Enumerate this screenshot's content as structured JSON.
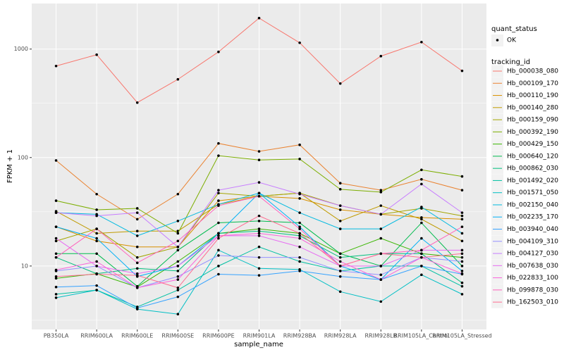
{
  "chart_data": {
    "type": "line",
    "x_label": "sample_name",
    "y_label": "FPKM + 1",
    "log_y": true,
    "grid": true,
    "ylim": [
      2.6,
      2630
    ],
    "yticks": [
      10,
      100,
      1000
    ],
    "point_legend": {
      "title": "quant_status",
      "labels": [
        "OK"
      ]
    },
    "legend_title": "tracking_id",
    "legend_position": "right",
    "categories": [
      "PB350LA",
      "RRIM600LA",
      "RRIM600LE",
      "RRIM600SE",
      "RRIM600PE",
      "RRIM901LA",
      "RRIM928BA",
      "RRIM928LA",
      "RRIM928LB",
      "RRIM105LA_Control",
      "RRIM105LA_Stressed"
    ],
    "series": [
      {
        "name": "Hb_000038_080",
        "color": "#F8766D",
        "values": [
          698,
          887,
          321,
          526,
          942,
          1930,
          1143,
          481,
          861,
          1160,
          630
        ]
      },
      {
        "name": "Hb_000109_170",
        "color": "#EA8331",
        "values": [
          94,
          46,
          27,
          46,
          135,
          114,
          131,
          58,
          50,
          63,
          50
        ]
      },
      {
        "name": "Hb_000110_190",
        "color": "#D89000",
        "values": [
          23,
          17,
          15,
          15,
          40,
          44,
          42,
          33,
          30,
          28,
          27
        ]
      },
      {
        "name": "Hb_000140_280",
        "color": "#C09B00",
        "values": [
          32,
          20,
          21,
          21,
          37,
          44,
          47,
          26,
          36,
          27,
          17
        ]
      },
      {
        "name": "Hb_000159_090",
        "color": "#A3A500",
        "values": [
          17,
          22,
          12,
          15,
          47,
          44,
          47,
          36,
          30,
          34,
          29
        ]
      },
      {
        "name": "Hb_000392_190",
        "color": "#7CAE00",
        "values": [
          40,
          33,
          34,
          20,
          104,
          95,
          97,
          51,
          48,
          77,
          67
        ]
      },
      {
        "name": "Hb_000429_150",
        "color": "#39B600",
        "values": [
          7.7,
          8.5,
          6.4,
          11,
          20,
          22,
          20,
          13,
          18,
          13,
          12
        ]
      },
      {
        "name": "Hb_000640_120",
        "color": "#00BB4E",
        "values": [
          13,
          13,
          6.5,
          14,
          25,
          26,
          25,
          13,
          10,
          25,
          10
        ]
      },
      {
        "name": "Hb_000862_030",
        "color": "#00BF7D",
        "values": [
          12,
          8.5,
          9.5,
          9,
          20,
          21,
          19,
          12,
          13,
          13,
          7
        ]
      },
      {
        "name": "Hb_001492_020",
        "color": "#00C1A3",
        "values": [
          5.5,
          6,
          4.2,
          6,
          10,
          15,
          11,
          9,
          10,
          10,
          6.5
        ]
      },
      {
        "name": "Hb_001571_050",
        "color": "#00BFC4",
        "values": [
          5.1,
          6,
          4.0,
          3.6,
          14,
          9.5,
          9.3,
          5.8,
          4.7,
          8.3,
          5.5
        ]
      },
      {
        "name": "Hb_002150_040",
        "color": "#00BAE0",
        "values": [
          31,
          30,
          19,
          26,
          37,
          47,
          31,
          22,
          22,
          35,
          20
        ]
      },
      {
        "name": "Hb_002235_170",
        "color": "#00B0F6",
        "values": [
          23,
          18,
          8,
          10,
          20,
          47,
          23,
          10,
          7.5,
          18,
          9
        ]
      },
      {
        "name": "Hb_003940_040",
        "color": "#35A2FF",
        "values": [
          6.4,
          6.6,
          4.1,
          5.2,
          8.4,
          8.2,
          9,
          8,
          7.5,
          10,
          8.4
        ]
      },
      {
        "name": "Hb_004109_310",
        "color": "#9590FF",
        "values": [
          9,
          10,
          6.3,
          8,
          12.5,
          12,
          12,
          9,
          8.3,
          12,
          11
        ]
      },
      {
        "name": "Hb_004127_030",
        "color": "#C77CFF",
        "values": [
          31,
          29,
          31,
          15,
          50,
          59,
          46,
          36,
          30,
          57,
          31
        ]
      },
      {
        "name": "Hb_007638_030",
        "color": "#E76BF3",
        "values": [
          18,
          10,
          8.5,
          10,
          19,
          19,
          15,
          10,
          10,
          14,
          14
        ]
      },
      {
        "name": "Hb_022833_100",
        "color": "#FA62DB",
        "values": [
          9.2,
          11,
          6.3,
          7.5,
          19,
          20,
          18,
          11,
          7.5,
          12,
          8.5
        ]
      },
      {
        "name": "Hb_099878_030",
        "color": "#FF62BC",
        "values": [
          12,
          22,
          10.7,
          17,
          36,
          44,
          22,
          10,
          13,
          14,
          23
        ]
      },
      {
        "name": "Hb_162503_010",
        "color": "#FF6C91",
        "values": [
          8,
          8.4,
          8.2,
          6.3,
          18,
          29,
          20,
          10,
          13,
          12,
          13
        ]
      }
    ]
  }
}
